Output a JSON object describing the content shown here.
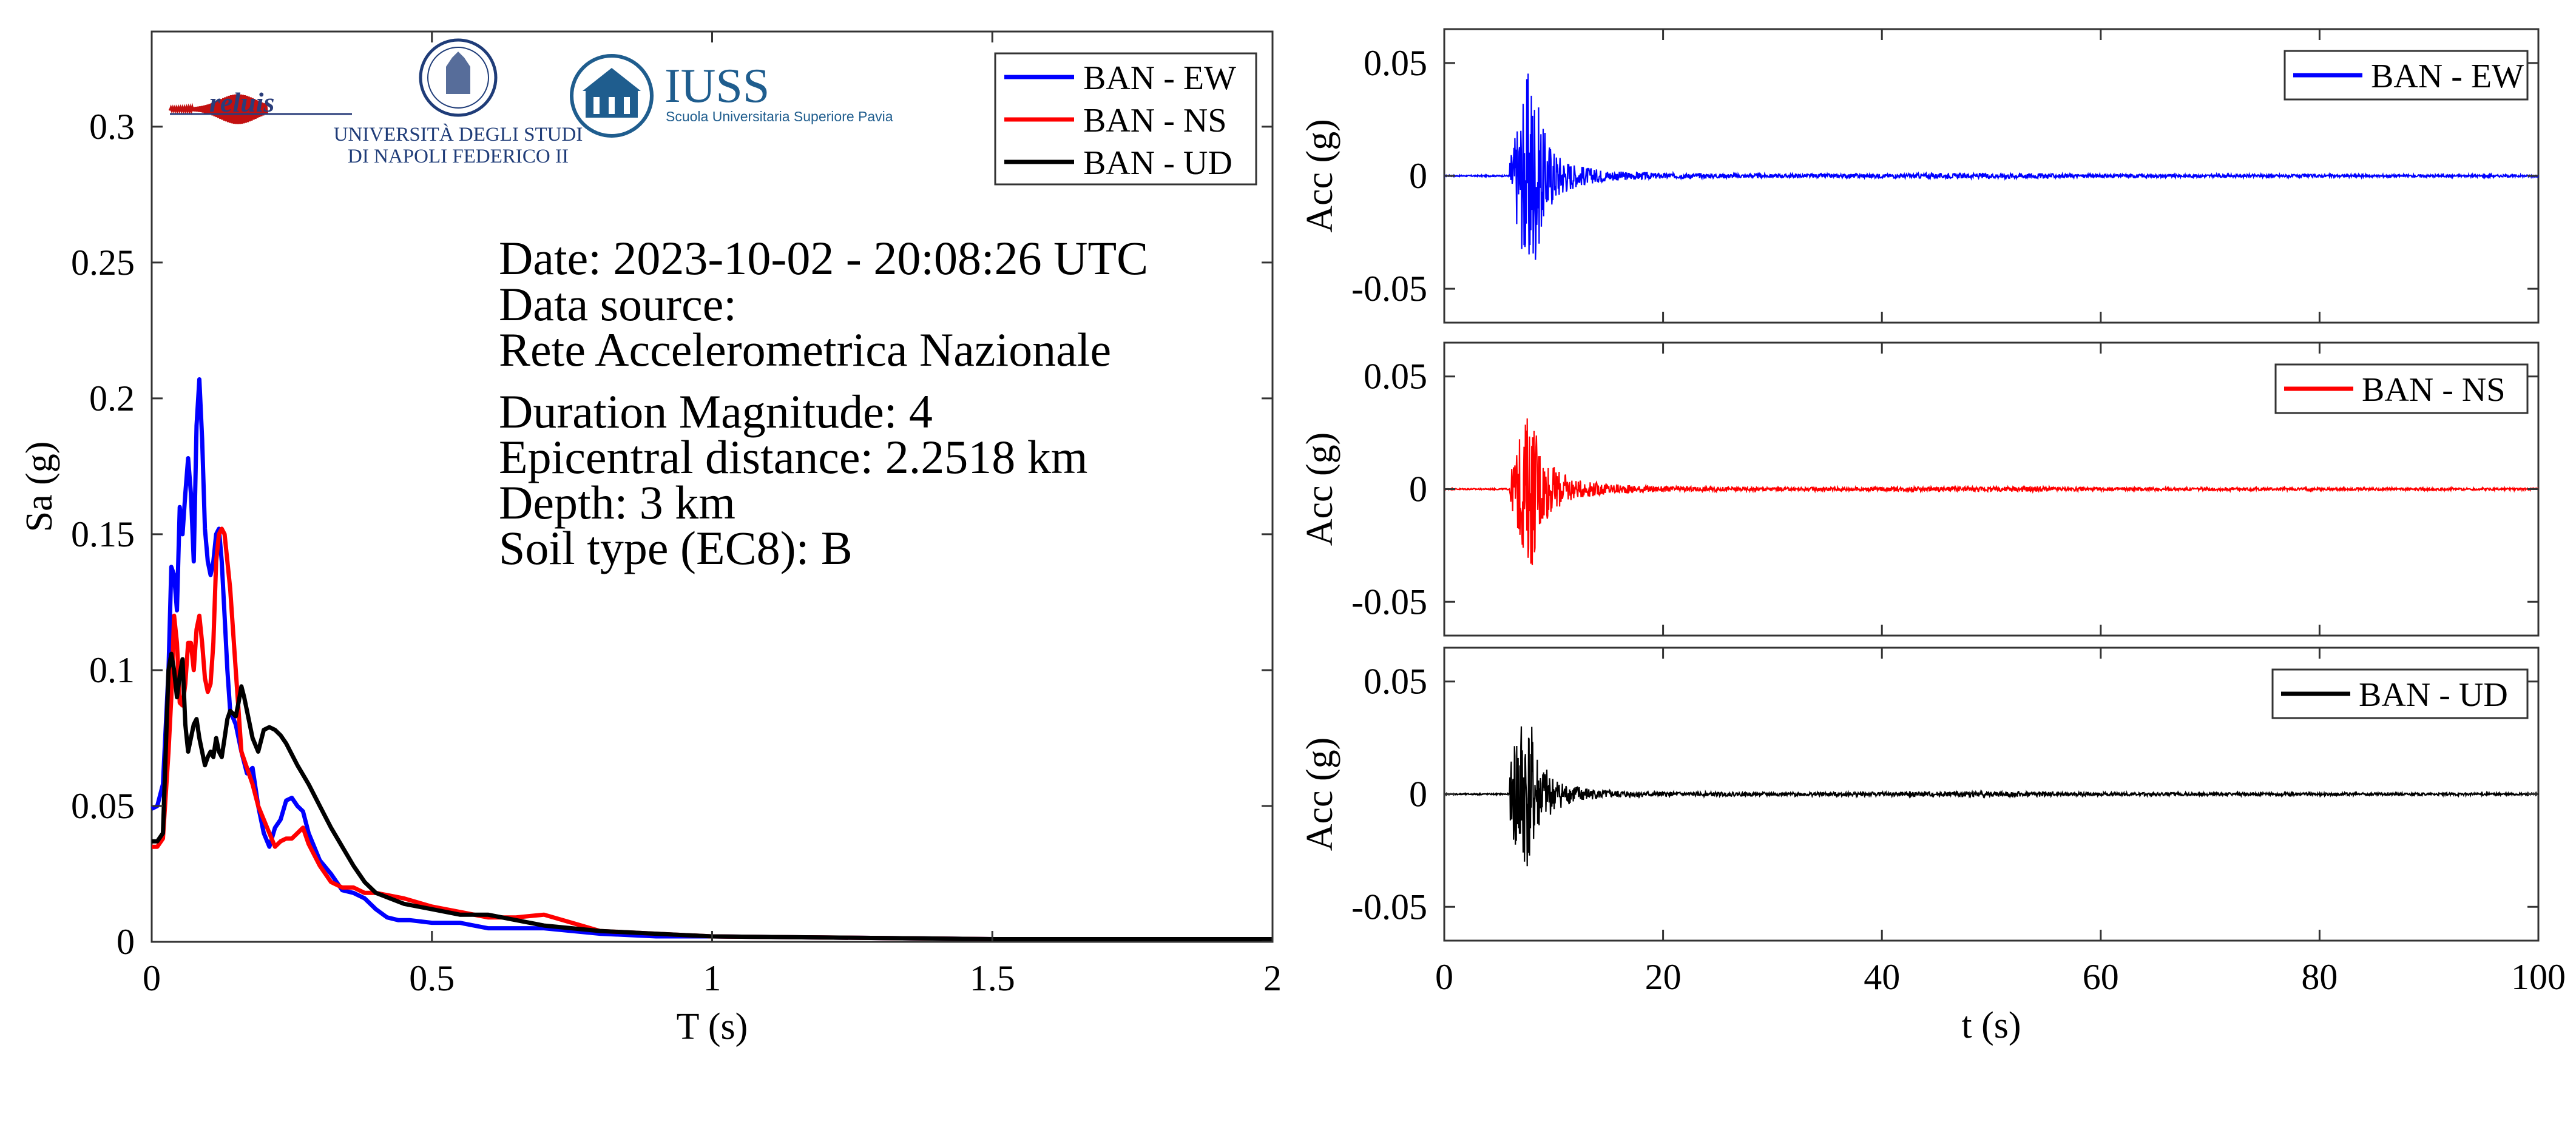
{
  "chart_data": [
    {
      "type": "line",
      "xlabel": "T (s)",
      "ylabel": "Sa (g)",
      "xlim": [
        0,
        2
      ],
      "ylim": [
        0,
        0.335
      ],
      "xticks": [
        0,
        0.5,
        1,
        1.5,
        2
      ],
      "xtick_labels": [
        "0",
        "0.5",
        "1",
        "1.5",
        "2"
      ],
      "yticks": [
        0,
        0.05,
        0.1,
        0.15,
        0.2,
        0.25,
        0.3
      ],
      "ytick_labels": [
        "0",
        "0.05",
        "0.1",
        "0.15",
        "0.2",
        "0.25",
        "0.3"
      ],
      "legend_position": "top-right",
      "series": [
        {
          "name": "BAN - EW",
          "color": "#0000ff",
          "points": [
            [
              0,
              0.049
            ],
            [
              0.01,
              0.05
            ],
            [
              0.02,
              0.058
            ],
            [
              0.03,
              0.1
            ],
            [
              0.035,
              0.138
            ],
            [
              0.04,
              0.135
            ],
            [
              0.045,
              0.122
            ],
            [
              0.05,
              0.16
            ],
            [
              0.055,
              0.15
            ],
            [
              0.06,
              0.165
            ],
            [
              0.065,
              0.178
            ],
            [
              0.07,
              0.165
            ],
            [
              0.075,
              0.14
            ],
            [
              0.08,
              0.19
            ],
            [
              0.085,
              0.207
            ],
            [
              0.09,
              0.185
            ],
            [
              0.095,
              0.152
            ],
            [
              0.1,
              0.14
            ],
            [
              0.105,
              0.135
            ],
            [
              0.11,
              0.14
            ],
            [
              0.115,
              0.15
            ],
            [
              0.12,
              0.152
            ],
            [
              0.125,
              0.14
            ],
            [
              0.13,
              0.12
            ],
            [
              0.135,
              0.1
            ],
            [
              0.14,
              0.085
            ],
            [
              0.15,
              0.08
            ],
            [
              0.16,
              0.07
            ],
            [
              0.17,
              0.062
            ],
            [
              0.18,
              0.064
            ],
            [
              0.19,
              0.05
            ],
            [
              0.2,
              0.04
            ],
            [
              0.21,
              0.035
            ],
            [
              0.22,
              0.042
            ],
            [
              0.23,
              0.045
            ],
            [
              0.24,
              0.052
            ],
            [
              0.25,
              0.053
            ],
            [
              0.26,
              0.05
            ],
            [
              0.27,
              0.048
            ],
            [
              0.28,
              0.04
            ],
            [
              0.3,
              0.03
            ],
            [
              0.32,
              0.025
            ],
            [
              0.34,
              0.019
            ],
            [
              0.36,
              0.018
            ],
            [
              0.38,
              0.016
            ],
            [
              0.4,
              0.012
            ],
            [
              0.42,
              0.009
            ],
            [
              0.44,
              0.008
            ],
            [
              0.46,
              0.008
            ],
            [
              0.5,
              0.007
            ],
            [
              0.55,
              0.007
            ],
            [
              0.6,
              0.005
            ],
            [
              0.7,
              0.005
            ],
            [
              0.8,
              0.003
            ],
            [
              0.9,
              0.002
            ],
            [
              1,
              0.002
            ],
            [
              1.5,
              0.001
            ],
            [
              2,
              0.001
            ]
          ]
        },
        {
          "name": "BAN - NS",
          "color": "#ff0000",
          "points": [
            [
              0,
              0.035
            ],
            [
              0.01,
              0.035
            ],
            [
              0.02,
              0.038
            ],
            [
              0.03,
              0.07
            ],
            [
              0.035,
              0.09
            ],
            [
              0.04,
              0.12
            ],
            [
              0.045,
              0.11
            ],
            [
              0.05,
              0.088
            ],
            [
              0.055,
              0.087
            ],
            [
              0.06,
              0.095
            ],
            [
              0.065,
              0.11
            ],
            [
              0.07,
              0.11
            ],
            [
              0.075,
              0.1
            ],
            [
              0.08,
              0.115
            ],
            [
              0.085,
              0.12
            ],
            [
              0.09,
              0.11
            ],
            [
              0.095,
              0.097
            ],
            [
              0.1,
              0.092
            ],
            [
              0.105,
              0.095
            ],
            [
              0.11,
              0.11
            ],
            [
              0.115,
              0.14
            ],
            [
              0.12,
              0.15
            ],
            [
              0.125,
              0.152
            ],
            [
              0.13,
              0.15
            ],
            [
              0.14,
              0.13
            ],
            [
              0.15,
              0.1
            ],
            [
              0.16,
              0.07
            ],
            [
              0.17,
              0.064
            ],
            [
              0.18,
              0.058
            ],
            [
              0.19,
              0.05
            ],
            [
              0.2,
              0.045
            ],
            [
              0.21,
              0.04
            ],
            [
              0.22,
              0.035
            ],
            [
              0.23,
              0.037
            ],
            [
              0.24,
              0.038
            ],
            [
              0.25,
              0.038
            ],
            [
              0.26,
              0.04
            ],
            [
              0.27,
              0.042
            ],
            [
              0.28,
              0.036
            ],
            [
              0.3,
              0.028
            ],
            [
              0.32,
              0.022
            ],
            [
              0.34,
              0.02
            ],
            [
              0.36,
              0.02
            ],
            [
              0.38,
              0.018
            ],
            [
              0.4,
              0.018
            ],
            [
              0.45,
              0.016
            ],
            [
              0.5,
              0.013
            ],
            [
              0.55,
              0.011
            ],
            [
              0.6,
              0.009
            ],
            [
              0.65,
              0.009
            ],
            [
              0.7,
              0.01
            ],
            [
              0.75,
              0.007
            ],
            [
              0.8,
              0.004
            ],
            [
              0.9,
              0.003
            ],
            [
              1,
              0.002
            ],
            [
              1.5,
              0.001
            ],
            [
              2,
              0.001
            ]
          ]
        },
        {
          "name": "BAN - UD",
          "color": "#000000",
          "points": [
            [
              0,
              0.037
            ],
            [
              0.01,
              0.037
            ],
            [
              0.02,
              0.04
            ],
            [
              0.025,
              0.07
            ],
            [
              0.03,
              0.1
            ],
            [
              0.035,
              0.106
            ],
            [
              0.04,
              0.1
            ],
            [
              0.045,
              0.09
            ],
            [
              0.05,
              0.098
            ],
            [
              0.055,
              0.104
            ],
            [
              0.06,
              0.08
            ],
            [
              0.065,
              0.07
            ],
            [
              0.07,
              0.075
            ],
            [
              0.075,
              0.08
            ],
            [
              0.08,
              0.082
            ],
            [
              0.085,
              0.075
            ],
            [
              0.09,
              0.07
            ],
            [
              0.095,
              0.065
            ],
            [
              0.1,
              0.068
            ],
            [
              0.105,
              0.07
            ],
            [
              0.11,
              0.068
            ],
            [
              0.115,
              0.075
            ],
            [
              0.12,
              0.07
            ],
            [
              0.125,
              0.068
            ],
            [
              0.13,
              0.075
            ],
            [
              0.135,
              0.082
            ],
            [
              0.14,
              0.085
            ],
            [
              0.15,
              0.083
            ],
            [
              0.155,
              0.088
            ],
            [
              0.16,
              0.094
            ],
            [
              0.165,
              0.09
            ],
            [
              0.17,
              0.085
            ],
            [
              0.18,
              0.075
            ],
            [
              0.19,
              0.07
            ],
            [
              0.2,
              0.078
            ],
            [
              0.21,
              0.079
            ],
            [
              0.22,
              0.078
            ],
            [
              0.23,
              0.076
            ],
            [
              0.24,
              0.073
            ],
            [
              0.26,
              0.065
            ],
            [
              0.28,
              0.058
            ],
            [
              0.3,
              0.05
            ],
            [
              0.32,
              0.042
            ],
            [
              0.34,
              0.035
            ],
            [
              0.36,
              0.028
            ],
            [
              0.38,
              0.022
            ],
            [
              0.4,
              0.018
            ],
            [
              0.45,
              0.014
            ],
            [
              0.5,
              0.012
            ],
            [
              0.55,
              0.01
            ],
            [
              0.6,
              0.01
            ],
            [
              0.65,
              0.008
            ],
            [
              0.7,
              0.006
            ],
            [
              0.8,
              0.004
            ],
            [
              0.9,
              0.003
            ],
            [
              1,
              0.002
            ],
            [
              1.5,
              0.001
            ],
            [
              2,
              0.001
            ]
          ]
        }
      ],
      "annotations": [
        "Date: 2023-10-02 - 20:08:26 UTC",
        "Data source:",
        "Rete Accelerometrica Nazionale",
        "Duration Magnitude: 4",
        "Epicentral distance: 2.2518 km",
        "Depth: 3 km",
        "Soil type (EC8): B"
      ],
      "logos": {
        "reluis": "reluis",
        "unina_line1": "UNIVERSITÀ DEGLI STUDI",
        "unina_line2": "DI NAPOLI FEDERICO II",
        "iuss": "IUSS",
        "iuss_sub": "Scuola Universitaria Superiore Pavia"
      }
    },
    {
      "type": "line",
      "xlabel": "",
      "ylabel": "Acc (g)",
      "xlim": [
        0,
        100
      ],
      "ylim": [
        -0.065,
        0.065
      ],
      "yticks": [
        -0.05,
        0,
        0.05
      ],
      "ytick_labels": [
        "-0.05",
        "0",
        "0.05"
      ],
      "legend_position": "top-right",
      "series": [
        {
          "name": "BAN - EW",
          "color": "#0000ff",
          "envelope": [
            [
              6,
              0.008
            ],
            [
              6.5,
              0.02
            ],
            [
              7,
              0.03
            ],
            [
              7.5,
              0.045
            ],
            [
              8,
              0.05
            ],
            [
              8.5,
              0.035
            ],
            [
              9,
              0.022
            ],
            [
              10,
              0.012
            ],
            [
              11,
              0.008
            ],
            [
              12,
              0.005
            ],
            [
              14,
              0.003
            ],
            [
              16,
              0.002
            ],
            [
              20,
              0.0012
            ],
            [
              30,
              0.0008
            ],
            [
              55,
              0.0012
            ],
            [
              56,
              0.0008
            ],
            [
              100,
              0.0005
            ]
          ]
        }
      ]
    },
    {
      "type": "line",
      "xlabel": "",
      "ylabel": "Acc (g)",
      "xlim": [
        0,
        100
      ],
      "ylim": [
        -0.065,
        0.065
      ],
      "yticks": [
        -0.05,
        0,
        0.05
      ],
      "ytick_labels": [
        "-0.05",
        "0",
        "0.05"
      ],
      "legend_position": "top-right",
      "series": [
        {
          "name": "BAN - NS",
          "color": "#ff0000",
          "envelope": [
            [
              6,
              0.006
            ],
            [
              6.5,
              0.015
            ],
            [
              7,
              0.025
            ],
            [
              7.5,
              0.033
            ],
            [
              8,
              0.035
            ],
            [
              8.5,
              0.025
            ],
            [
              9,
              0.016
            ],
            [
              10,
              0.01
            ],
            [
              11,
              0.007
            ],
            [
              12,
              0.004
            ],
            [
              14,
              0.003
            ],
            [
              16,
              0.002
            ],
            [
              20,
              0.0012
            ],
            [
              30,
              0.0008
            ],
            [
              55,
              0.0012
            ],
            [
              56,
              0.0008
            ],
            [
              100,
              0.0005
            ]
          ]
        }
      ]
    },
    {
      "type": "line",
      "xlabel": "t (s)",
      "ylabel": "Acc (g)",
      "xlim": [
        0,
        100
      ],
      "ylim": [
        -0.065,
        0.065
      ],
      "xticks": [
        0,
        20,
        40,
        60,
        80,
        100
      ],
      "xtick_labels": [
        "0",
        "20",
        "40",
        "60",
        "80",
        "100"
      ],
      "yticks": [
        -0.05,
        0,
        0.05
      ],
      "ytick_labels": [
        "-0.05",
        "0",
        "0.05"
      ],
      "legend_position": "top-right",
      "series": [
        {
          "name": "BAN - UD",
          "color": "#000000",
          "envelope": [
            [
              6,
              0.01
            ],
            [
              6.5,
              0.03
            ],
            [
              7,
              0.037
            ],
            [
              7.5,
              0.035
            ],
            [
              8,
              0.03
            ],
            [
              8.5,
              0.02
            ],
            [
              9,
              0.013
            ],
            [
              10,
              0.008
            ],
            [
              11,
              0.005
            ],
            [
              12,
              0.004
            ],
            [
              14,
              0.002
            ],
            [
              16,
              0.0015
            ],
            [
              20,
              0.001
            ],
            [
              30,
              0.0008
            ],
            [
              55,
              0.0012
            ],
            [
              56,
              0.0008
            ],
            [
              100,
              0.0005
            ]
          ]
        }
      ]
    }
  ]
}
